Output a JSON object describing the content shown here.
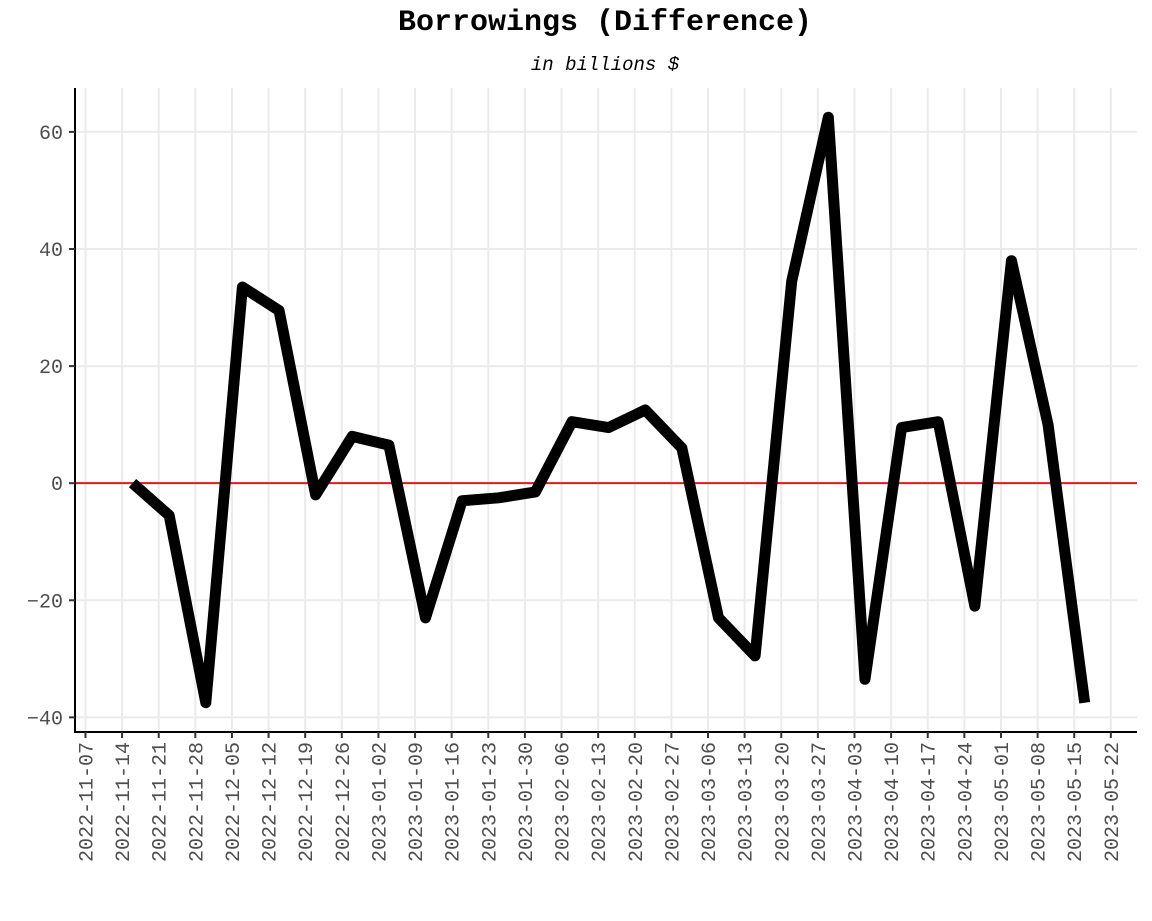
{
  "chart_data": {
    "type": "line",
    "title": "Borrowings (Difference)",
    "subtitle": "in billions $",
    "xlabel": "",
    "ylabel": "",
    "x_ticks": [
      "2022-11-07",
      "2022-11-14",
      "2022-11-21",
      "2022-11-28",
      "2022-12-05",
      "2022-12-12",
      "2022-12-19",
      "2022-12-26",
      "2023-01-02",
      "2023-01-09",
      "2023-01-16",
      "2023-01-23",
      "2023-01-30",
      "2023-02-06",
      "2023-02-13",
      "2023-02-20",
      "2023-02-27",
      "2023-03-06",
      "2023-03-13",
      "2023-03-20",
      "2023-03-27",
      "2023-04-03",
      "2023-04-10",
      "2023-04-17",
      "2023-04-24",
      "2023-05-01",
      "2023-05-08",
      "2023-05-15",
      "2023-05-22"
    ],
    "y_ticks": [
      60,
      40,
      20,
      0,
      -20,
      -40
    ],
    "y_tick_labels": [
      "60",
      "40",
      "20",
      "0",
      "−20",
      "−40"
    ],
    "ylim": [
      -42.5,
      67.5
    ],
    "xlim": [
      "2022-11-05",
      "2023-05-27"
    ],
    "grid": true,
    "reference_line": {
      "y": 0,
      "color": "#e31a1c"
    },
    "line_color": "#000000",
    "series": [
      {
        "x": [
          "2022-11-16",
          "2022-11-23",
          "2022-11-30",
          "2022-12-07",
          "2022-12-14",
          "2022-12-21",
          "2022-12-28",
          "2023-01-04",
          "2023-01-11",
          "2023-01-18",
          "2023-01-25",
          "2023-02-01",
          "2023-02-08",
          "2023-02-15",
          "2023-02-22",
          "2023-03-01",
          "2023-03-08",
          "2023-03-15",
          "2023-03-22",
          "2023-03-29",
          "2023-04-05",
          "2023-04-12",
          "2023-04-19",
          "2023-04-26",
          "2023-05-03",
          "2023-05-10",
          "2023-05-17"
        ],
        "values": [
          0,
          -5.5,
          -37.5,
          33.5,
          29.5,
          -2,
          8,
          6.5,
          -23,
          -3,
          -2.5,
          -1.5,
          10.5,
          9.5,
          12.5,
          6,
          -23,
          -29.5,
          34.5,
          62.5,
          -33.5,
          9.5,
          10.5,
          -21,
          38,
          10,
          -37.5
        ]
      }
    ]
  }
}
